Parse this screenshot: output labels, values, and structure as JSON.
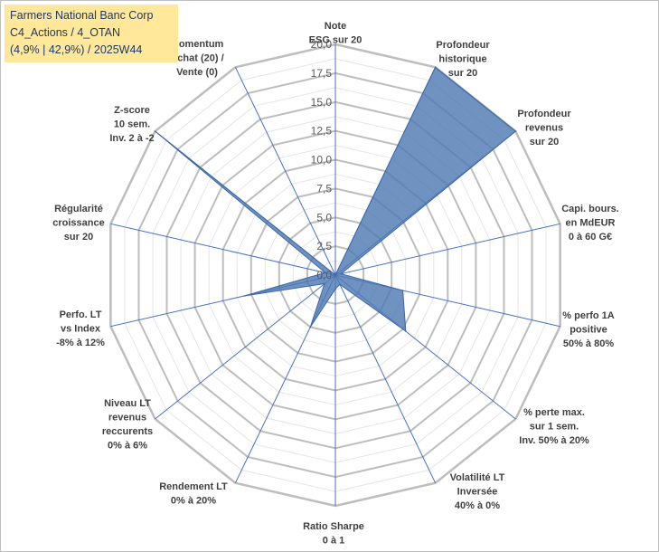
{
  "header": {
    "line1": "Farmers National Banc Corp",
    "line2": "C4_Actions / 4_OTAN",
    "line3": "(4,9% | 42,9%) / 2025W44"
  },
  "chart_data": {
    "type": "radar",
    "title": "",
    "r_range": [
      0,
      20
    ],
    "r_ticks": [
      "0,0",
      "2,5",
      "5,0",
      "7,5",
      "10,0",
      "12,5",
      "15,0",
      "17,5",
      "20,0"
    ],
    "grid": true,
    "axes": [
      {
        "label": [
          "Note",
          "ESG sur 20"
        ]
      },
      {
        "label": [
          "Profondeur",
          "historique",
          "sur 20"
        ]
      },
      {
        "label": [
          "Profondeur",
          "revenus",
          "sur 20"
        ]
      },
      {
        "label": [
          "Capi. bours.",
          "en MdEUR",
          "0 à 60 G€"
        ]
      },
      {
        "label": [
          "% perfo 1A",
          "positive",
          "50% à 80%"
        ]
      },
      {
        "label": [
          "% perte max.",
          "sur 1 sem.",
          "Inv. 50% à 20%"
        ]
      },
      {
        "label": [
          "Volatilité LT",
          "Inversée",
          "40% à 0%"
        ]
      },
      {
        "label": [
          "Ratio Sharpe",
          "0 à 1"
        ]
      },
      {
        "label": [
          "Rendement LT",
          "0% à 20%"
        ]
      },
      {
        "label": [
          "Niveau LT",
          "revenus",
          "reccurents",
          "0% à 6%"
        ]
      },
      {
        "label": [
          "Perfo. LT",
          "vs Index",
          "-8% à 12%"
        ]
      },
      {
        "label": [
          "Régularité",
          "croissance",
          "sur 20"
        ]
      },
      {
        "label": [
          "Z-score",
          "10 sem.",
          "Inv. 2 à -2"
        ]
      },
      {
        "label": [
          "Momentum",
          "Achat (20) /",
          "Vente (0)"
        ]
      }
    ],
    "series": [
      {
        "values": [
          0,
          20,
          20,
          0.5,
          6,
          7.8,
          0.9,
          1.2,
          5,
          1.2,
          8.1,
          0.9,
          20,
          0
        ]
      }
    ],
    "colors": {
      "fill": "#4f7ab3",
      "grid": "#bfbfbf",
      "axis": "#4472c4"
    }
  }
}
